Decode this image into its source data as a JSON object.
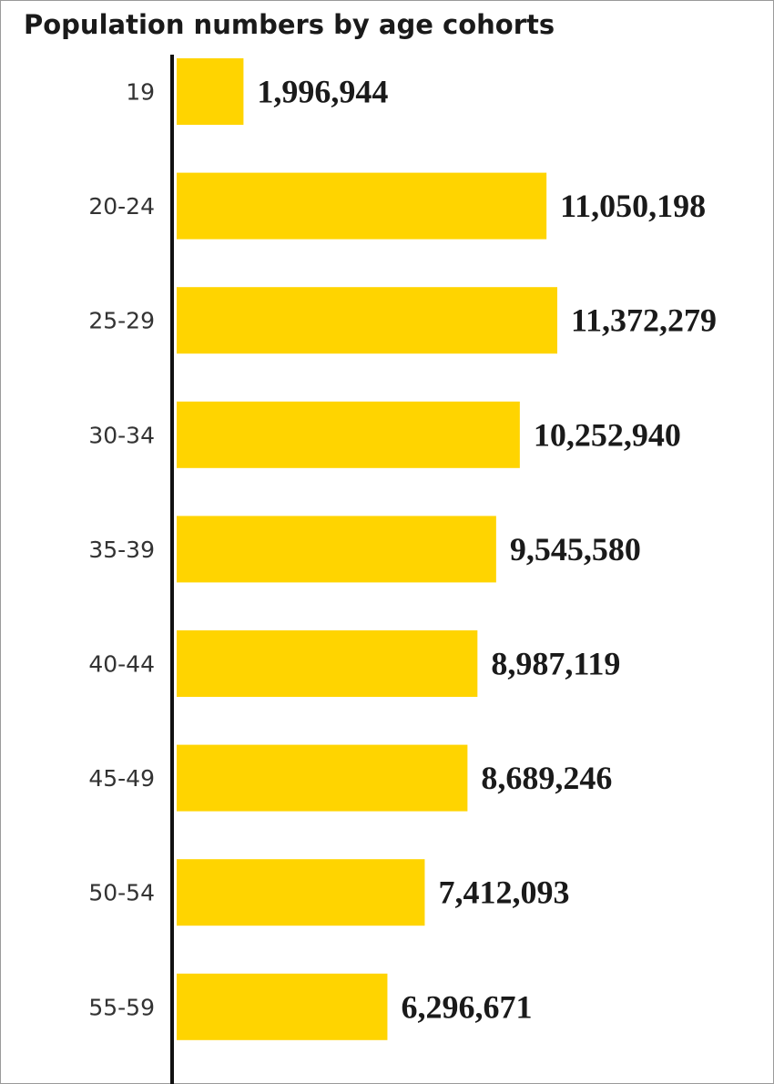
{
  "chart_data": {
    "type": "bar",
    "orientation": "horizontal",
    "title": "Population numbers by age cohorts",
    "categories": [
      "19",
      "20-24",
      "25-29",
      "30-34",
      "35-39",
      "40-44",
      "45-49",
      "50-54",
      "55-59"
    ],
    "values": [
      1996944,
      11050198,
      11372279,
      10252940,
      9545580,
      8987119,
      8689246,
      7412093,
      6296671
    ],
    "value_labels": [
      "1,996,944",
      "11,050,198",
      "11,372,279",
      "10,252,940",
      "9,545,580",
      "8,987,119",
      "8,689,246",
      "7,412,093",
      "6,296,671"
    ],
    "xlim": [
      0,
      11372279
    ],
    "grid": false,
    "legend": "none",
    "colors": {
      "bar": "#FFD400",
      "axis": "#111111",
      "frame": "#9a9a9a"
    }
  }
}
